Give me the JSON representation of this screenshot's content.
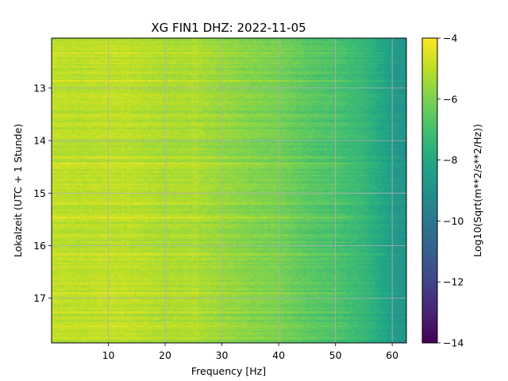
{
  "chart_data": {
    "type": "heatmap",
    "title": "XG FIN1  DHZ: 2022-11-05",
    "xlabel": "Frequency [Hz]",
    "ylabel": "Lokalzeit (UTC + 1 Stunde)",
    "xlim": [
      0,
      62.5
    ],
    "ylim": [
      12.05,
      17.85
    ],
    "y_inverted": true,
    "x_ticks": [
      10,
      20,
      30,
      40,
      50,
      60
    ],
    "y_ticks": [
      13,
      14,
      15,
      16,
      17
    ],
    "grid": true,
    "colormap": "viridis",
    "colorbar": {
      "label": "Log10(Sqrt(m**2/s**2/Hz))",
      "range": [
        -14,
        -4
      ],
      "ticks": [
        -4,
        -6,
        -8,
        -10,
        -12,
        -14
      ]
    },
    "level_profile": {
      "frequency_hz": [
        0,
        5,
        10,
        15,
        20,
        25,
        30,
        35,
        40,
        45,
        48,
        50,
        52,
        55,
        58,
        60,
        62.5
      ],
      "log10_amplitude": [
        -5.0,
        -5.1,
        -5.0,
        -5.1,
        -5.3,
        -5.3,
        -5.6,
        -5.9,
        -6.1,
        -6.6,
        -6.8,
        -6.9,
        -7.1,
        -7.4,
        -8.0,
        -8.5,
        -8.9
      ]
    },
    "bright_lines_hz": [
      12.5,
      13.5,
      25.0,
      25.5
    ]
  }
}
